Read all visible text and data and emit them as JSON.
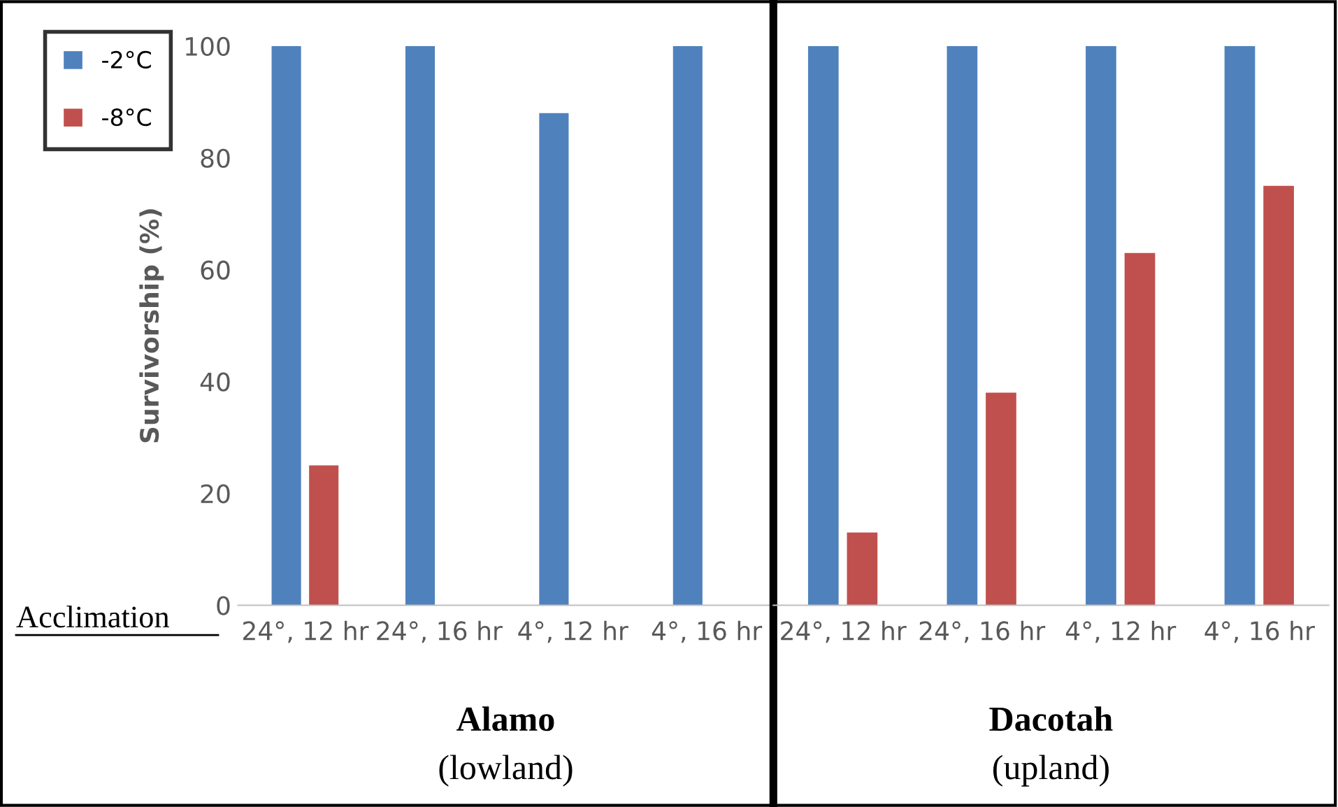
{
  "chart_data": [
    {
      "type": "bar",
      "ylabel": "Survivorship (%)",
      "categories": [
        "24°, 12 hr",
        "24°, 16 hr",
        "4°, 12 hr",
        "4°, 16 hr"
      ],
      "series": [
        {
          "name": "-2°C",
          "color": "#4f81bd",
          "values": [
            100,
            100,
            88,
            100
          ]
        },
        {
          "name": "-8°C",
          "color": "#c0504d",
          "values": [
            25,
            0,
            0,
            0
          ]
        }
      ],
      "ylim": [
        0,
        100
      ],
      "yticks": [
        0,
        20,
        40,
        60,
        80,
        100
      ],
      "grid": false,
      "legend": "top left",
      "annotations": [
        "Acclimation",
        "Alamo",
        "(lowland)"
      ]
    },
    {
      "type": "bar",
      "categories": [
        "24°, 12 hr",
        "24°, 16 hr",
        "4°, 12 hr",
        "4°, 16 hr"
      ],
      "series": [
        {
          "color": "#4f81bd",
          "values": [
            100,
            100,
            100,
            100
          ]
        },
        {
          "color": "#c0504d",
          "values": [
            13,
            38,
            63,
            75
          ]
        }
      ],
      "ylim": [
        0,
        100
      ],
      "tick_labels": "x",
      "grid": false,
      "annotations": [
        "Dacotah",
        "(upland)"
      ]
    }
  ]
}
